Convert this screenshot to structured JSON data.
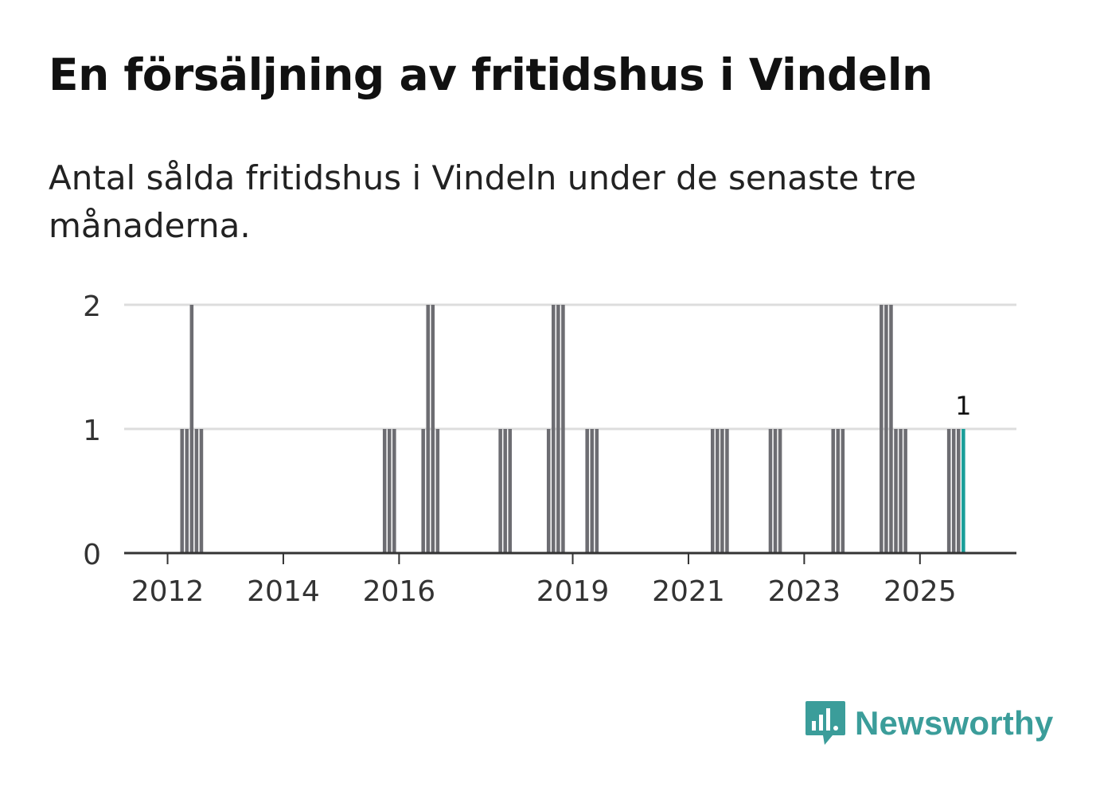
{
  "title": "En försäljning av fritidshus i Vindeln",
  "subtitle": "Antal sålda fritidshus i Vindeln under de senaste tre månaderna.",
  "brand": {
    "name": "Newsworthy",
    "icon": "newsworthy-logo-icon",
    "color": "#3b9d9a"
  },
  "colors": {
    "bar": "#6d6d72",
    "highlight": "#1a9e99",
    "grid": "#dddddd",
    "axis": "#333333"
  },
  "chart_data": {
    "type": "bar",
    "title": "En försäljning av fritidshus i Vindeln",
    "subtitle": "Antal sålda fritidshus i Vindeln under de senaste tre månaderna.",
    "xlabel": "",
    "ylabel": "",
    "ylim": [
      0,
      2
    ],
    "yticks": [
      0,
      1,
      2
    ],
    "xlim": [
      "2011-04",
      "2026-09"
    ],
    "xticks": [
      "2012",
      "2014",
      "2016",
      "2019",
      "2021",
      "2023",
      "2025"
    ],
    "grid": true,
    "legend": "none",
    "x": [
      "2012-04",
      "2012-05",
      "2012-06",
      "2012-07",
      "2012-08",
      "2015-10",
      "2015-11",
      "2015-12",
      "2016-06",
      "2016-07",
      "2016-08",
      "2016-09",
      "2017-10",
      "2017-11",
      "2017-12",
      "2018-08",
      "2018-09",
      "2018-10",
      "2018-11",
      "2019-04",
      "2019-05",
      "2019-06",
      "2021-06",
      "2021-07",
      "2021-08",
      "2021-09",
      "2022-06",
      "2022-07",
      "2022-08",
      "2023-07",
      "2023-08",
      "2023-09",
      "2024-05",
      "2024-06",
      "2024-07",
      "2024-08",
      "2024-09",
      "2024-10",
      "2025-07",
      "2025-08",
      "2025-09",
      "2025-10"
    ],
    "values": [
      1,
      1,
      2,
      1,
      1,
      1,
      1,
      1,
      1,
      2,
      2,
      1,
      1,
      1,
      1,
      1,
      2,
      2,
      2,
      1,
      1,
      1,
      1,
      1,
      1,
      1,
      1,
      1,
      1,
      1,
      1,
      1,
      2,
      2,
      2,
      1,
      1,
      1,
      1,
      1,
      1,
      1
    ],
    "highlight": {
      "x": "2025-10",
      "value": 1,
      "label": "1"
    }
  }
}
